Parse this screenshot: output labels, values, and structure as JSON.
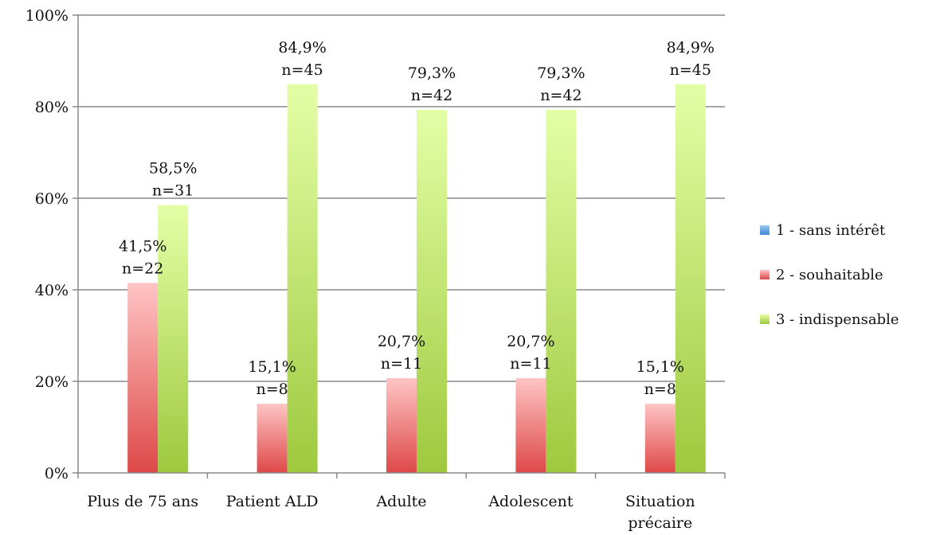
{
  "chart_data": {
    "type": "bar",
    "title": "",
    "xlabel": "",
    "ylabel": "",
    "ylim": [
      0,
      100
    ],
    "yticks": [
      0,
      20,
      40,
      60,
      80,
      100
    ],
    "ytick_labels": [
      "0%",
      "20%",
      "40%",
      "60%",
      "80%",
      "100%"
    ],
    "grid": true,
    "legend_position": "right",
    "categories": [
      [
        "Plus de 75 ans"
      ],
      [
        "Patient ALD"
      ],
      [
        "Adulte"
      ],
      [
        "Adolescent"
      ],
      [
        "Situation",
        "précaire"
      ]
    ],
    "series": [
      {
        "name": "1 - sans intérêt",
        "color": "#4a90d9",
        "values": [
          0,
          0,
          0,
          0,
          0
        ],
        "labels": [
          null,
          null,
          null,
          null,
          null
        ]
      },
      {
        "name": "2 - souhaitable",
        "color": "#e8504f",
        "values": [
          41.5,
          15.1,
          20.7,
          20.7,
          15.1
        ],
        "labels": [
          [
            "41,5%",
            "n=22"
          ],
          [
            "15,1%",
            "n=8"
          ],
          [
            "20,7%",
            "n=11"
          ],
          [
            "20,7%",
            "n=11"
          ],
          [
            "15,1%",
            "n=8"
          ]
        ]
      },
      {
        "name": "3 - indispensable",
        "color": "#a6cf4a",
        "values": [
          58.5,
          84.9,
          79.3,
          79.3,
          84.9
        ],
        "labels": [
          [
            "58,5%",
            "n=31"
          ],
          [
            "84,9%",
            "n=45"
          ],
          [
            "79,3%",
            "n=42"
          ],
          [
            "79,3%",
            "n=42"
          ],
          [
            "84,9%",
            "n=45"
          ]
        ]
      }
    ]
  }
}
